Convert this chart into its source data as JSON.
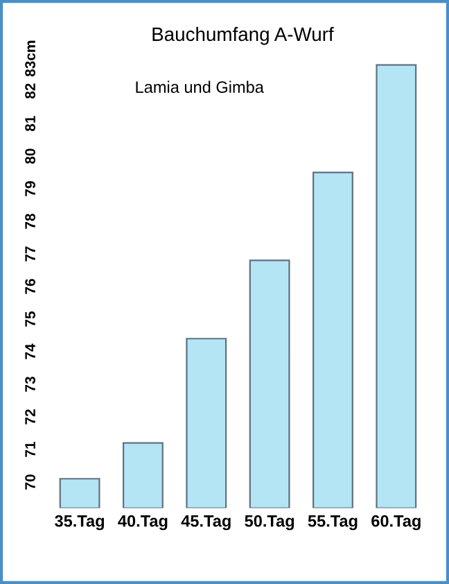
{
  "chart_data": {
    "type": "bar",
    "title": "Bauchumfang A-Wurf",
    "subtitle": "Lamia und Gimba",
    "categories": [
      "35.Tag",
      "40.Tag",
      "45.Tag",
      "50.Tag",
      "55.Tag",
      "60.Tag"
    ],
    "values": [
      70.1,
      71.2,
      74.4,
      76.8,
      79.5,
      82.8
    ],
    "color": "#b3e5f5",
    "ylim": [
      69.2,
      83
    ],
    "yticks": [
      70,
      71,
      72,
      73,
      74,
      75,
      76,
      77,
      78,
      79,
      80,
      81,
      82,
      {
        "value": 83,
        "label": "83cm"
      }
    ],
    "grid": false
  }
}
